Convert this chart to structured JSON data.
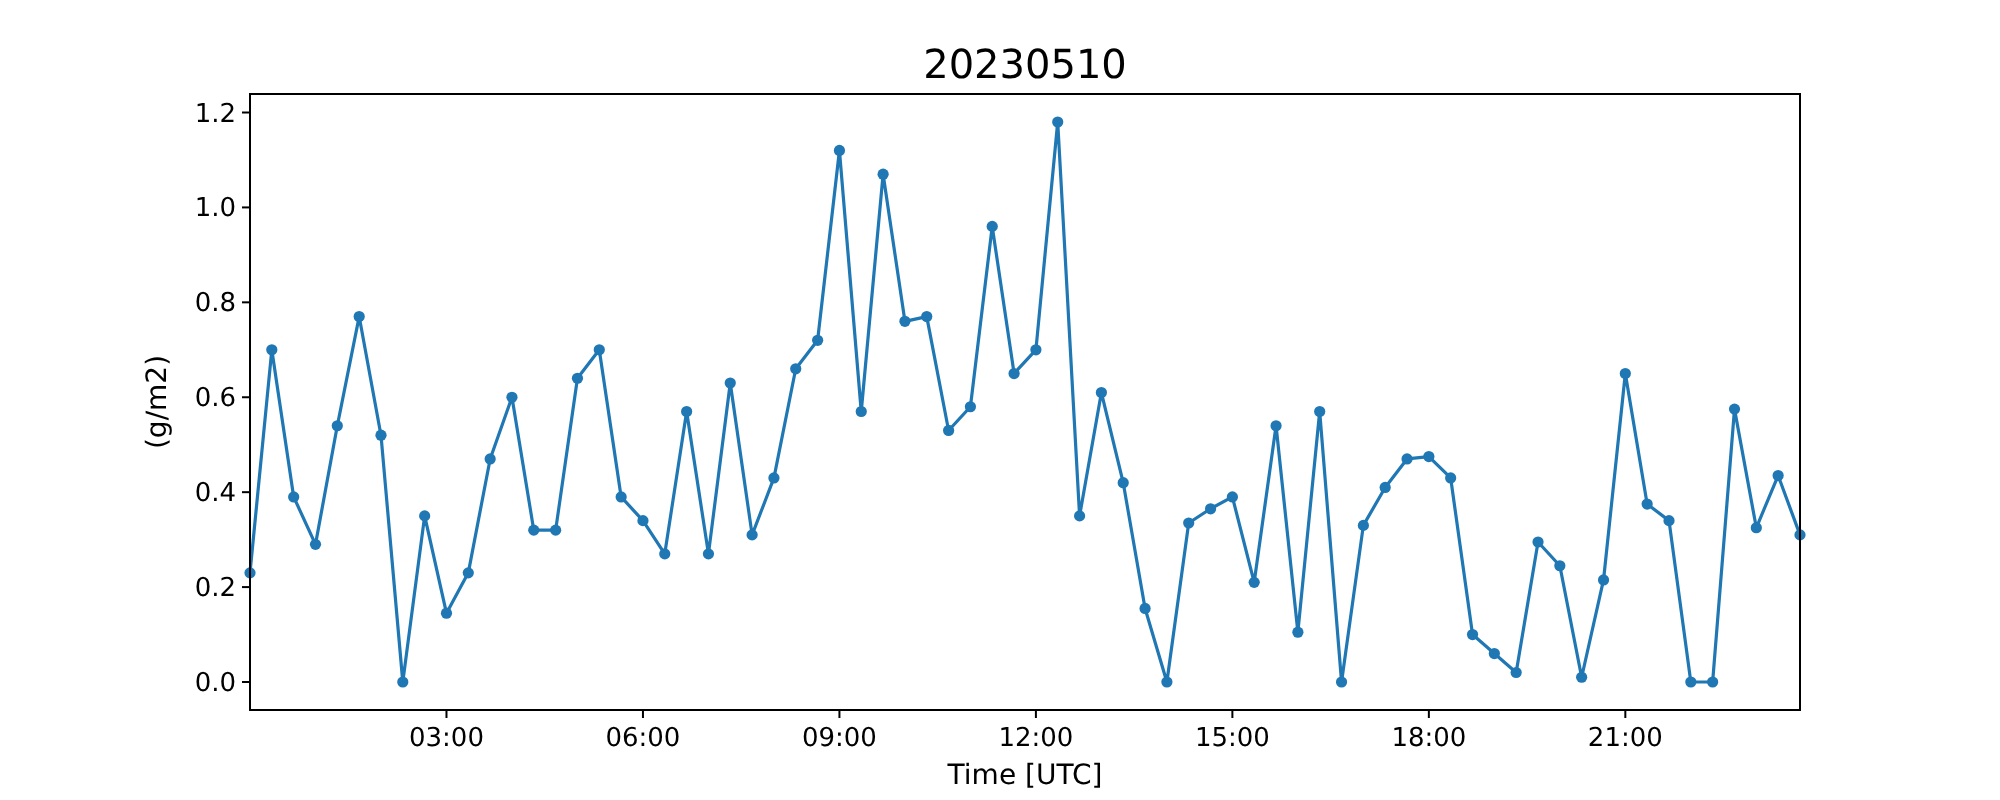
{
  "chart_data": {
    "type": "line",
    "title": "20230510",
    "xlabel": "Time [UTC]",
    "ylabel": "(g/m2)",
    "marker": "circle",
    "grid": false,
    "x": [
      0,
      0.333,
      0.667,
      1,
      1.333,
      1.667,
      2,
      2.333,
      2.667,
      3,
      3.333,
      3.667,
      4,
      4.333,
      4.667,
      5,
      5.333,
      5.667,
      6,
      6.333,
      6.667,
      7,
      7.333,
      7.667,
      8,
      8.333,
      8.667,
      9,
      9.333,
      9.667,
      10,
      10.333,
      10.667,
      11,
      11.333,
      11.667,
      12,
      12.333,
      12.667,
      13,
      13.333,
      13.667,
      14,
      14.333,
      14.667,
      15,
      15.333,
      15.667,
      16,
      16.333,
      16.667,
      17,
      17.333,
      17.667,
      18,
      18.333,
      18.667,
      19,
      19.333,
      19.667,
      20,
      20.333,
      20.667,
      21,
      21.333,
      21.667,
      22,
      22.333,
      22.667,
      23,
      23.333,
      23.667
    ],
    "series": [
      {
        "color": "#1f77b4",
        "values": [
          0.23,
          0.7,
          0.39,
          0.29,
          0.54,
          0.77,
          0.52,
          0,
          0.35,
          0.145,
          0.23,
          0.47,
          0.6,
          0.32,
          0.32,
          0.64,
          0.7,
          0.39,
          0.34,
          0.27,
          0.57,
          0.27,
          0.63,
          0.31,
          0.43,
          0.66,
          0.72,
          1.12,
          0.57,
          1.07,
          0.76,
          0.77,
          0.53,
          0.58,
          0.96,
          0.65,
          0.7,
          1.18,
          0.35,
          0.61,
          0.42,
          0.155,
          0,
          0.335,
          0.365,
          0.39,
          0.21,
          0.54,
          0.105,
          0.57,
          0,
          0.33,
          0.41,
          0.47,
          0.475,
          0.43,
          0.1,
          0.06,
          0.02,
          0.295,
          0.245,
          0.01,
          0.215,
          0.65,
          0.375,
          0.34,
          0,
          0,
          0.575,
          0.325,
          0.435,
          0.31
        ]
      }
    ],
    "xlim": [
      0,
      23.667
    ],
    "ylim": [
      -0.059,
      1.239
    ],
    "xticks": [
      {
        "value": 3,
        "label": "03:00"
      },
      {
        "value": 6,
        "label": "06:00"
      },
      {
        "value": 9,
        "label": "09:00"
      },
      {
        "value": 12,
        "label": "12:00"
      },
      {
        "value": 15,
        "label": "15:00"
      },
      {
        "value": 18,
        "label": "18:00"
      },
      {
        "value": 21,
        "label": "21:00"
      }
    ],
    "yticks": [
      {
        "value": 0,
        "label": "0.0"
      },
      {
        "value": 0.2,
        "label": "0.2"
      },
      {
        "value": 0.4,
        "label": "0.4"
      },
      {
        "value": 0.6,
        "label": "0.6"
      },
      {
        "value": 0.8,
        "label": "0.8"
      },
      {
        "value": 1,
        "label": "1.0"
      },
      {
        "value": 1.2,
        "label": "1.2"
      }
    ]
  }
}
